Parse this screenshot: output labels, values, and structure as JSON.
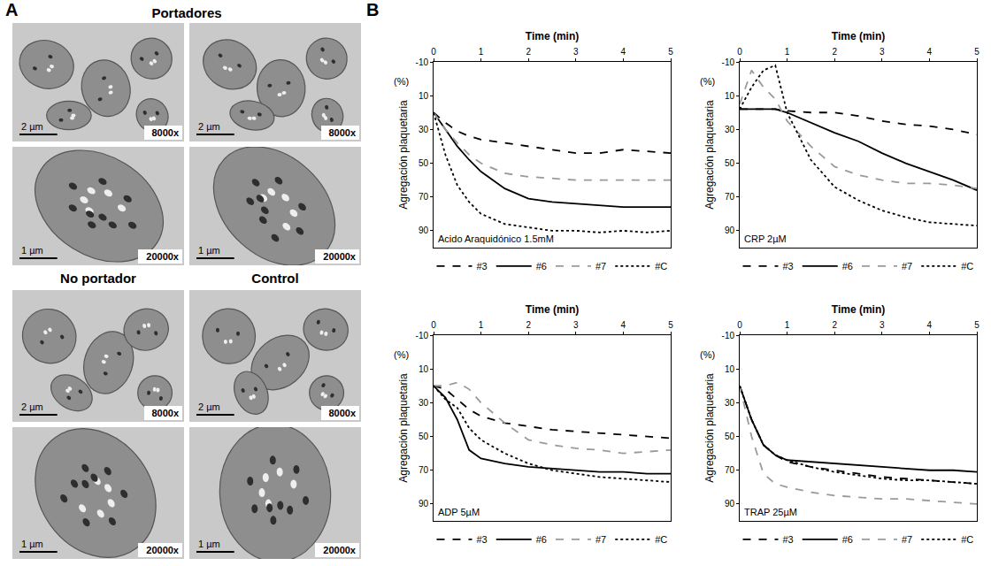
{
  "panel_labels": [
    "A",
    "B"
  ],
  "micrographs": {
    "groups": [
      {
        "label": "Portadores",
        "images": [
          {
            "scale_bar": "2 µm",
            "magnification": "8000x"
          },
          {
            "scale_bar": "2 µm",
            "magnification": "8000x"
          },
          {
            "scale_bar": "1 µm",
            "magnification": "20000x"
          },
          {
            "scale_bar": "1 µm",
            "magnification": "20000x"
          }
        ]
      },
      {
        "label": "No portador",
        "images": [
          {
            "scale_bar": "2 µm",
            "magnification": "8000x"
          },
          {
            "scale_bar": "1 µm",
            "magnification": "20000x"
          }
        ]
      },
      {
        "label": "Control",
        "images": [
          {
            "scale_bar": "2 µm",
            "magnification": "8000x"
          },
          {
            "scale_bar": "1 µm",
            "magnification": "20000x"
          }
        ]
      }
    ]
  },
  "chart_data": [
    {
      "type": "line",
      "annotation": "Acido Araquidónico 1.5mM",
      "x_label": "Time (min)",
      "y_label": "Agregación plaquetaria",
      "y_unit_label": "(%)",
      "x": [
        0,
        0.25,
        0.5,
        0.75,
        1,
        1.5,
        2,
        2.5,
        3,
        3.5,
        4,
        4.5,
        5
      ],
      "xlim": [
        0,
        5
      ],
      "xticks": [
        0,
        1,
        2,
        3,
        4,
        5
      ],
      "ylim": [
        100,
        -10
      ],
      "yticks": [
        -10,
        10,
        30,
        50,
        70,
        90
      ],
      "grid": false,
      "legend": "bottom",
      "series": [
        {
          "name": "#3",
          "color": "#000000",
          "line_style": "dashed",
          "values": [
            20,
            26,
            31,
            34,
            36,
            38,
            40,
            42,
            44,
            44,
            42,
            43,
            44
          ]
        },
        {
          "name": "#6",
          "color": "#000000",
          "line_style": "solid",
          "values": [
            20,
            30,
            40,
            48,
            55,
            65,
            71,
            73,
            74,
            75,
            76,
            76,
            76
          ]
        },
        {
          "name": "#7",
          "color": "#9a9a9a",
          "line_style": "dashed",
          "values": [
            20,
            30,
            38,
            45,
            50,
            56,
            58,
            59,
            60,
            60,
            60,
            60,
            60
          ]
        },
        {
          "name": "#C",
          "color": "#000000",
          "line_style": "dotted",
          "values": [
            20,
            45,
            63,
            73,
            80,
            86,
            88,
            90,
            90,
            91,
            90,
            91,
            90
          ]
        }
      ]
    },
    {
      "type": "line",
      "annotation": "CRP 2µM",
      "x_label": "Time (min)",
      "y_label": "Agregación plaquetaria",
      "y_unit_label": "(%)",
      "x": [
        0,
        0.25,
        0.5,
        0.75,
        1,
        1.5,
        2,
        2.5,
        3,
        3.5,
        4,
        4.5,
        5
      ],
      "xlim": [
        0,
        5
      ],
      "xticks": [
        0,
        1,
        2,
        3,
        4,
        5
      ],
      "ylim": [
        100,
        -10
      ],
      "yticks": [
        -10,
        10,
        30,
        50,
        70,
        90
      ],
      "grid": false,
      "legend": "bottom",
      "series": [
        {
          "name": "#3",
          "color": "#000000",
          "line_style": "dashed",
          "values": [
            18,
            18,
            18,
            18,
            19,
            20,
            20,
            22,
            25,
            27,
            28,
            30,
            33
          ]
        },
        {
          "name": "#6",
          "color": "#000000",
          "line_style": "solid",
          "values": [
            18,
            18,
            18,
            18,
            20,
            26,
            32,
            37,
            44,
            50,
            55,
            60,
            66
          ]
        },
        {
          "name": "#7",
          "color": "#9a9a9a",
          "line_style": "dashed",
          "values": [
            15,
            -5,
            5,
            12,
            25,
            40,
            52,
            57,
            60,
            62,
            62,
            63,
            65
          ]
        },
        {
          "name": "#C",
          "color": "#000000",
          "line_style": "dotted",
          "values": [
            18,
            5,
            -5,
            -8,
            20,
            48,
            64,
            72,
            78,
            82,
            85,
            86,
            87
          ]
        }
      ]
    },
    {
      "type": "line",
      "annotation": "ADP 5µM",
      "x_label": "Time (min)",
      "y_label": "Agregación plaquetaria",
      "y_unit_label": "(%)",
      "x": [
        0,
        0.25,
        0.5,
        0.75,
        1,
        1.5,
        2,
        2.5,
        3,
        3.5,
        4,
        4.5,
        5
      ],
      "xlim": [
        0,
        5
      ],
      "xticks": [
        0,
        1,
        2,
        3,
        4,
        5
      ],
      "ylim": [
        100,
        -10
      ],
      "yticks": [
        -10,
        10,
        30,
        50,
        70,
        90
      ],
      "grid": false,
      "legend": "bottom",
      "series": [
        {
          "name": "#3",
          "color": "#000000",
          "line_style": "dashed",
          "values": [
            20,
            22,
            28,
            34,
            38,
            42,
            44,
            46,
            47,
            48,
            49,
            50,
            51
          ]
        },
        {
          "name": "#6",
          "color": "#000000",
          "line_style": "solid",
          "values": [
            20,
            27,
            40,
            58,
            63,
            66,
            68,
            69,
            70,
            71,
            71,
            72,
            72
          ]
        },
        {
          "name": "#7",
          "color": "#9a9a9a",
          "line_style": "dashed",
          "values": [
            20,
            20,
            18,
            22,
            30,
            42,
            52,
            55,
            57,
            58,
            60,
            59,
            58
          ]
        },
        {
          "name": "#C",
          "color": "#000000",
          "line_style": "dotted",
          "values": [
            20,
            28,
            33,
            45,
            52,
            60,
            66,
            70,
            72,
            74,
            75,
            76,
            77
          ]
        }
      ]
    },
    {
      "type": "line",
      "annotation": "TRAP 25µM",
      "x_label": "Time (min)",
      "y_label": "Agregación plaquetaria",
      "y_unit_label": "(%)",
      "x": [
        0,
        0.25,
        0.5,
        0.75,
        1,
        1.5,
        2,
        2.5,
        3,
        3.5,
        4,
        4.5,
        5
      ],
      "xlim": [
        0,
        5
      ],
      "xticks": [
        0,
        1,
        2,
        3,
        4,
        5
      ],
      "ylim": [
        100,
        -10
      ],
      "yticks": [
        -10,
        10,
        30,
        50,
        70,
        90
      ],
      "grid": false,
      "legend": "bottom",
      "series": [
        {
          "name": "#3",
          "color": "#000000",
          "line_style": "dashed",
          "values": [
            20,
            40,
            55,
            61,
            65,
            68,
            70,
            72,
            74,
            75,
            76,
            77,
            78
          ]
        },
        {
          "name": "#6",
          "color": "#000000",
          "line_style": "solid",
          "values": [
            20,
            40,
            55,
            61,
            64,
            65,
            66,
            67,
            68,
            69,
            70,
            70,
            71
          ]
        },
        {
          "name": "#7",
          "color": "#9a9a9a",
          "line_style": "dashed",
          "values": [
            20,
            50,
            72,
            78,
            80,
            83,
            85,
            86,
            87,
            87,
            88,
            89,
            90
          ]
        },
        {
          "name": "#C",
          "color": "#000000",
          "line_style": "dotted",
          "values": [
            20,
            40,
            55,
            61,
            64,
            68,
            71,
            73,
            75,
            76,
            76,
            77,
            78
          ]
        }
      ]
    }
  ]
}
